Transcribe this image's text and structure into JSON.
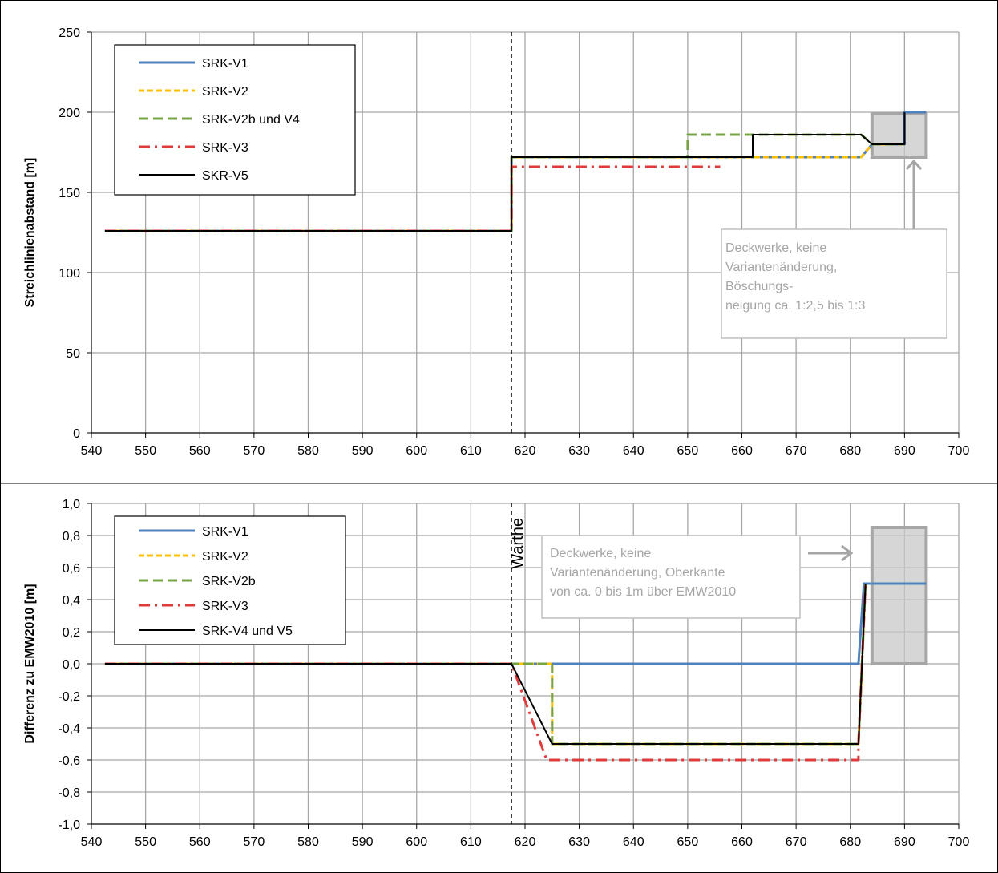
{
  "chart_data": [
    {
      "type": "line",
      "ylabel": "Streichlinienabstand [m]",
      "xlim": [
        540,
        700
      ],
      "ylim": [
        0,
        250
      ],
      "x_ticks": [
        540,
        550,
        560,
        570,
        580,
        590,
        600,
        610,
        620,
        630,
        640,
        650,
        660,
        670,
        680,
        690,
        700
      ],
      "y_ticks": [
        0,
        50,
        100,
        150,
        200,
        250
      ],
      "y_tick_labels": [
        "0",
        "50",
        "100",
        "150",
        "200",
        "250"
      ],
      "grid": true,
      "legend_position": "top-left",
      "reference_line_x": 617.5,
      "series": [
        {
          "name": "SRK-V1",
          "color": "#4f81bd",
          "dash": "solid",
          "points": [
            [
              542.5,
              126
            ],
            [
              617.5,
              126
            ],
            [
              617.5,
              172
            ],
            [
              682,
              172
            ],
            [
              684,
              180
            ],
            [
              690,
              180
            ],
            [
              690,
              200
            ],
            [
              694,
              200
            ]
          ]
        },
        {
          "name": "SRK-V2",
          "color": "#ffc000",
          "dash": "dash",
          "points": [
            [
              542.5,
              126
            ],
            [
              617.5,
              126
            ],
            [
              617.5,
              172
            ],
            [
              682,
              172
            ],
            [
              684,
              180
            ],
            [
              690,
              180
            ]
          ]
        },
        {
          "name": "SRK-V2b und V4",
          "color": "#77a345",
          "dash": "longdash",
          "points": [
            [
              542.5,
              126
            ],
            [
              617.5,
              126
            ],
            [
              617.5,
              172
            ],
            [
              650,
              172
            ],
            [
              650,
              186
            ],
            [
              682,
              186
            ],
            [
              684,
              180
            ],
            [
              690,
              180
            ]
          ]
        },
        {
          "name": "SRK-V3",
          "color": "#e03a3a",
          "dash": "dashdot",
          "points": [
            [
              542.5,
              126
            ],
            [
              617.5,
              126
            ],
            [
              617.5,
              166
            ],
            [
              656,
              166
            ]
          ]
        },
        {
          "name": "SKR-V5",
          "color": "#000000",
          "dash": "solid",
          "points": [
            [
              542.5,
              126
            ],
            [
              617.5,
              126
            ],
            [
              617.5,
              172
            ],
            [
              662,
              172
            ],
            [
              662,
              186
            ],
            [
              682,
              186
            ],
            [
              684,
              180
            ],
            [
              690,
              180
            ],
            [
              690,
              200
            ]
          ]
        }
      ],
      "annotation": {
        "lines": [
          "Deckwerke, keine",
          "Variantenänderung,",
          "Böschungs-",
          "neigung ca. 1:2,5 bis 1:3"
        ],
        "box_x": [
          684,
          694
        ],
        "box_y": [
          172,
          199
        ]
      }
    },
    {
      "type": "line",
      "ylabel": "Differenz zu EMW2010 [m]",
      "xlim": [
        540,
        700
      ],
      "ylim": [
        -1.0,
        1.0
      ],
      "x_ticks": [
        540,
        550,
        560,
        570,
        580,
        590,
        600,
        610,
        620,
        630,
        640,
        650,
        660,
        670,
        680,
        690,
        700
      ],
      "y_ticks": [
        -1.0,
        -0.8,
        -0.6,
        -0.4,
        -0.2,
        0.0,
        0.2,
        0.4,
        0.6,
        0.8,
        1.0
      ],
      "y_tick_labels": [
        "-1,0",
        "-0,8",
        "-0,6",
        "-0,4",
        "-0,2",
        "0,0",
        "0,2",
        "0,4",
        "0,6",
        "0,8",
        "1,0"
      ],
      "grid": true,
      "legend_position": "top-left",
      "reference_line_x": 617.5,
      "reference_label": "Warthe",
      "series": [
        {
          "name": "SRK-V1",
          "color": "#4f81bd",
          "dash": "solid",
          "points": [
            [
              542.5,
              0
            ],
            [
              681.5,
              0
            ],
            [
              682.5,
              0.5
            ],
            [
              694,
              0.5
            ]
          ]
        },
        {
          "name": "SRK-V2",
          "color": "#ffc000",
          "dash": "dash",
          "points": [
            [
              542.5,
              0
            ],
            [
              625,
              0
            ],
            [
              625,
              -0.5
            ],
            [
              681.5,
              -0.5
            ],
            [
              682.8,
              0.5
            ]
          ]
        },
        {
          "name": "SRK-V2b",
          "color": "#77a345",
          "dash": "longdash",
          "points": [
            [
              542.5,
              0
            ],
            [
              625,
              0
            ],
            [
              625,
              -0.5
            ],
            [
              681.5,
              -0.5
            ],
            [
              682.8,
              0.5
            ]
          ]
        },
        {
          "name": "SRK-V3",
          "color": "#e03a3a",
          "dash": "dashdot",
          "points": [
            [
              542.5,
              0
            ],
            [
              617.5,
              0
            ],
            [
              624,
              -0.6
            ],
            [
              681.5,
              -0.6
            ],
            [
              681.5,
              -0.5
            ],
            [
              682.8,
              0.5
            ]
          ]
        },
        {
          "name": "SRK-V4 und V5",
          "color": "#000000",
          "dash": "solid",
          "points": [
            [
              542.5,
              0
            ],
            [
              617.5,
              0
            ],
            [
              625,
              -0.5
            ],
            [
              681.5,
              -0.5
            ],
            [
              682.8,
              0.5
            ]
          ]
        }
      ],
      "annotation": {
        "lines": [
          "Deckwerke, keine",
          "Variantenänderung, Oberkante",
          "von ca. 0 bis 1m über EMW2010"
        ],
        "box_x": [
          684,
          694
        ],
        "box_y": [
          0.0,
          0.85
        ]
      }
    }
  ]
}
